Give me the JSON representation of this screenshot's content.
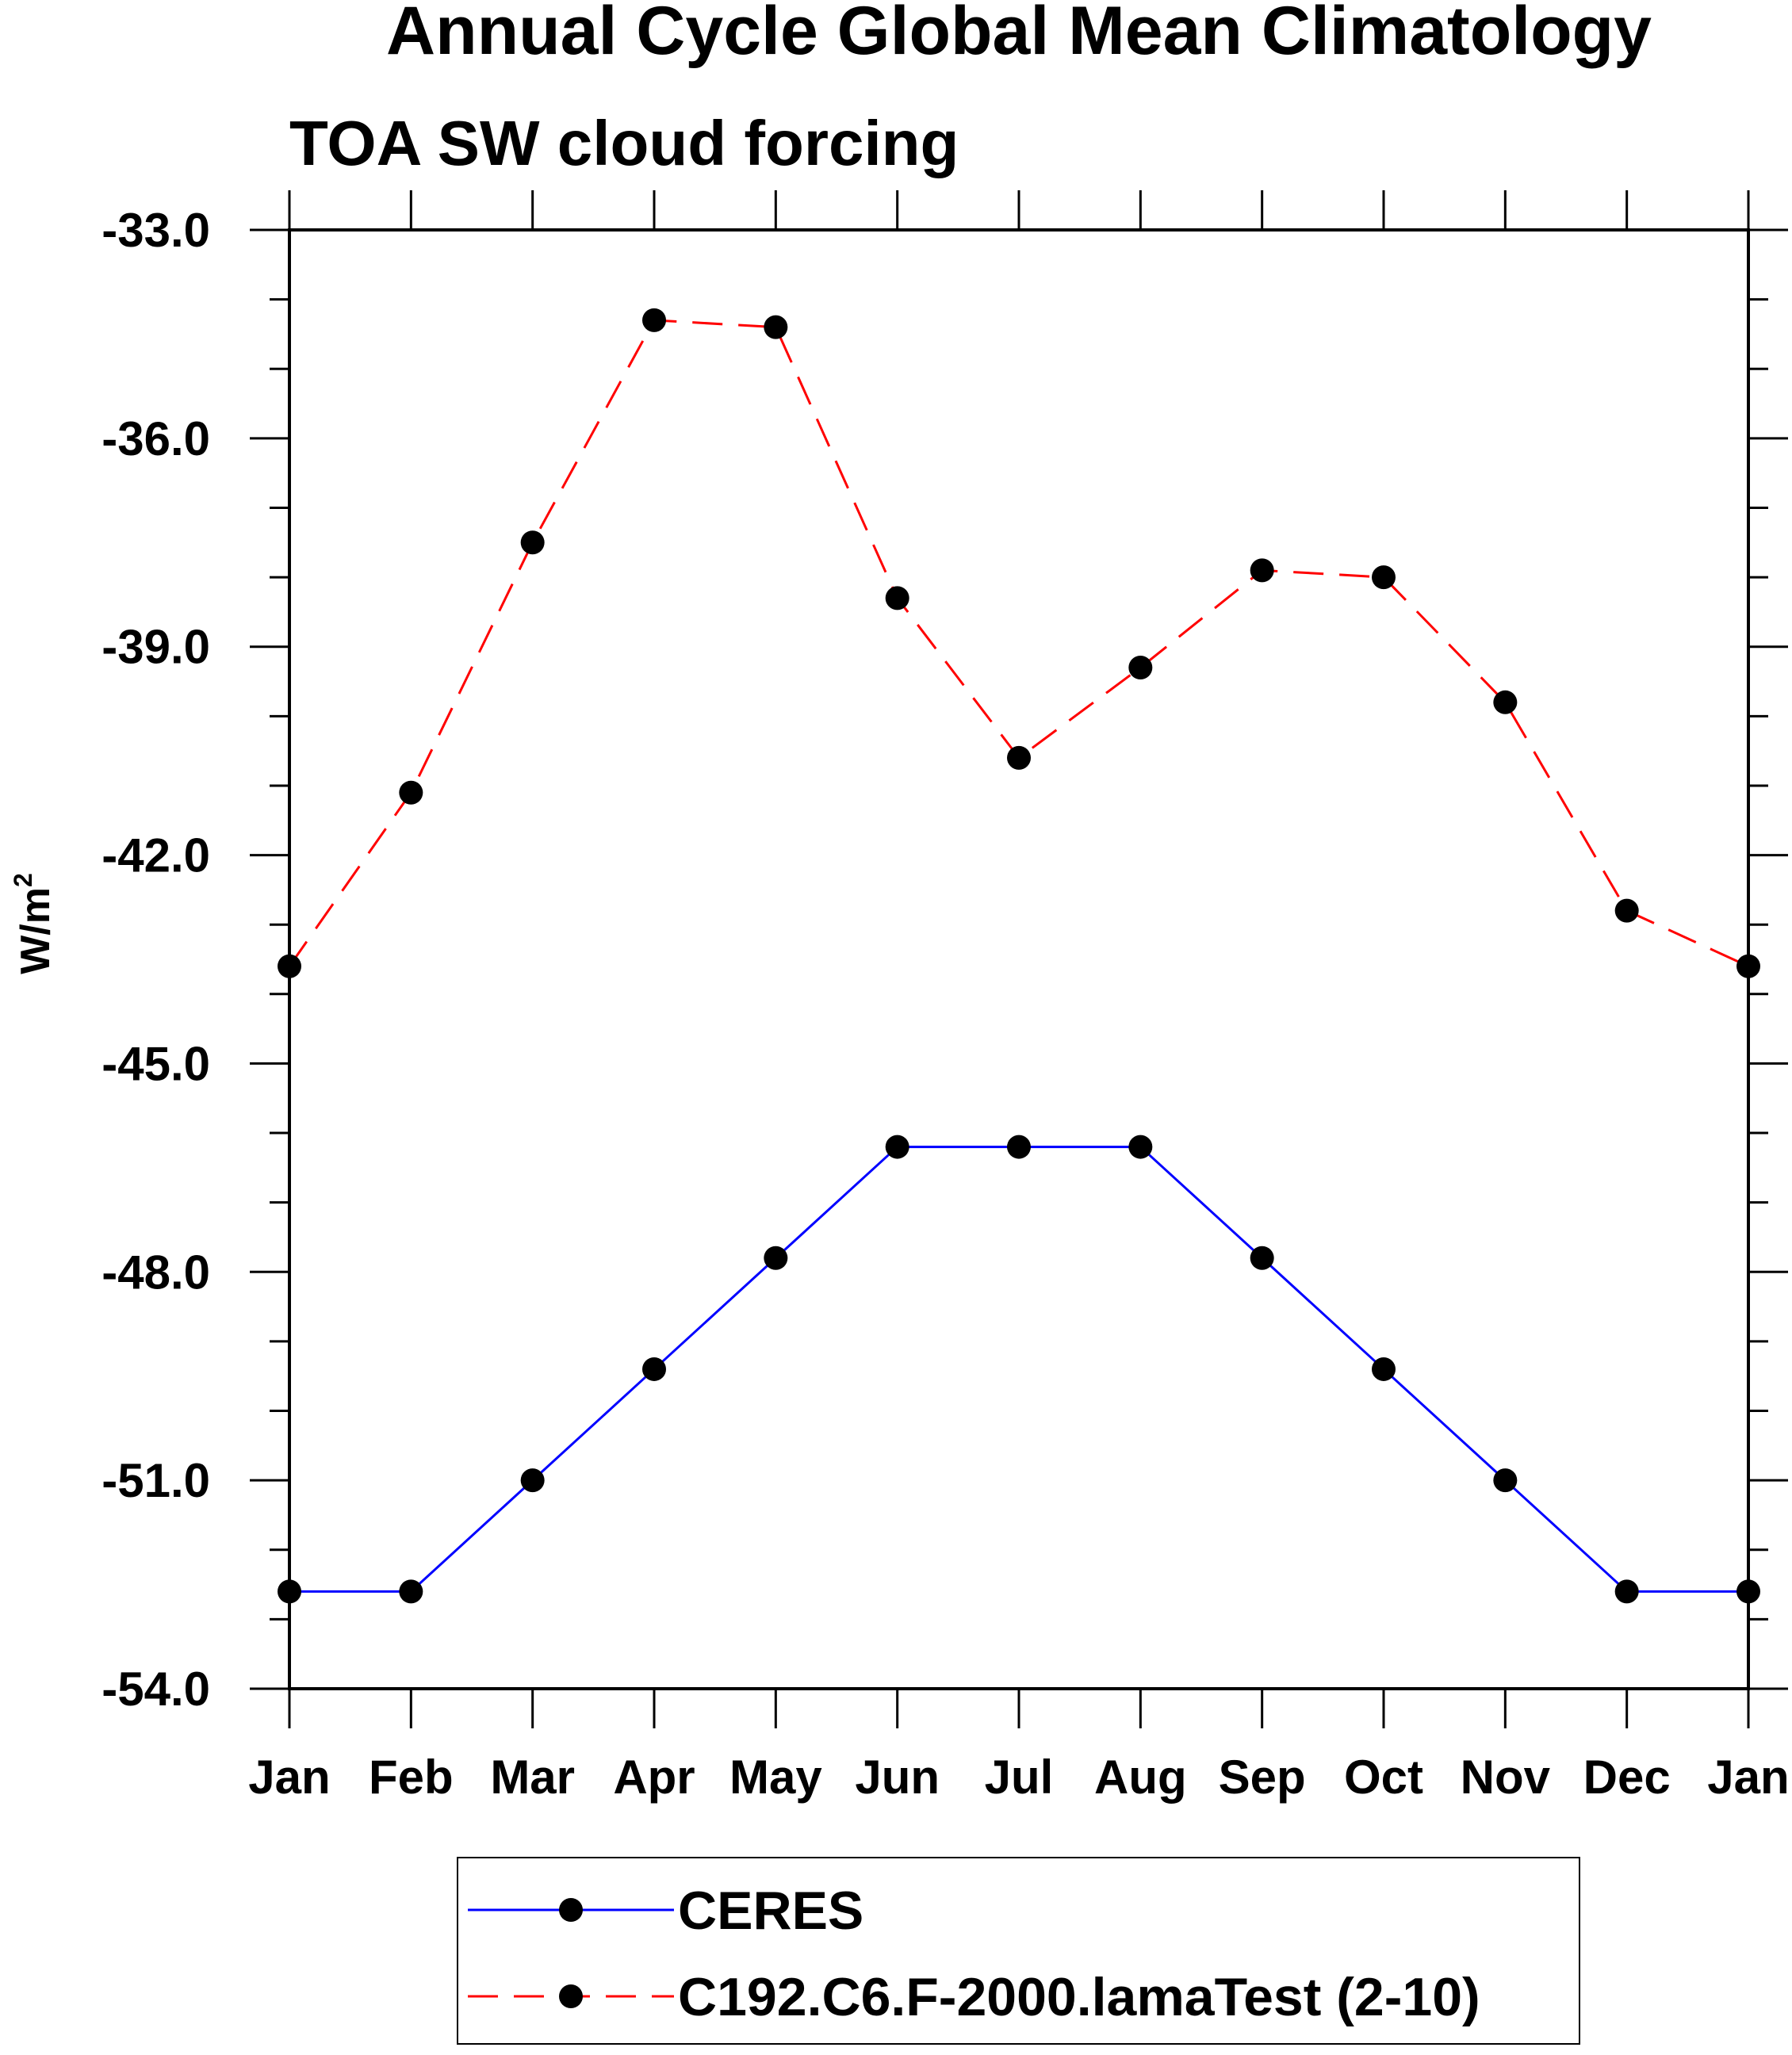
{
  "chart_data": {
    "type": "line",
    "title": "Annual Cycle Global Mean Climatology",
    "subtitle": "TOA SW cloud forcing",
    "ylabel": "W/m",
    "ylabel_superscript": "2",
    "xlabel": "",
    "categories": [
      "Jan",
      "Feb",
      "Mar",
      "Apr",
      "May",
      "Jun",
      "Jul",
      "Aug",
      "Sep",
      "Oct",
      "Nov",
      "Dec",
      "Jan"
    ],
    "ylim": [
      -54.0,
      -33.0
    ],
    "yticks": [
      "-33.0",
      "-36.0",
      "-39.0",
      "-42.0",
      "-45.0",
      "-48.0",
      "-51.0",
      "-54.0"
    ],
    "ytick_values": [
      -33,
      -36,
      -39,
      -42,
      -45,
      -48,
      -51,
      -54
    ],
    "y_minor_step": 1,
    "grid": false,
    "legend_position": "bottom-center",
    "series": [
      {
        "name": "CERES",
        "color": "#0000ff",
        "line_style": "solid",
        "marker": "filled-circle",
        "values": [
          -52.6,
          -52.6,
          -51.0,
          -49.4,
          -47.8,
          -46.2,
          -46.2,
          -46.2,
          -47.8,
          -49.4,
          -51.0,
          -52.6,
          -52.6
        ]
      },
      {
        "name": "C192.C6.F-2000.lamaTest (2-10)",
        "color": "#ff0000",
        "line_style": "dashed",
        "marker": "filled-circle",
        "values": [
          -43.6,
          -41.1,
          -37.5,
          -34.3,
          -34.4,
          -38.3,
          -40.6,
          -39.3,
          -37.9,
          -38.0,
          -39.8,
          -42.8,
          -43.6
        ]
      }
    ]
  }
}
